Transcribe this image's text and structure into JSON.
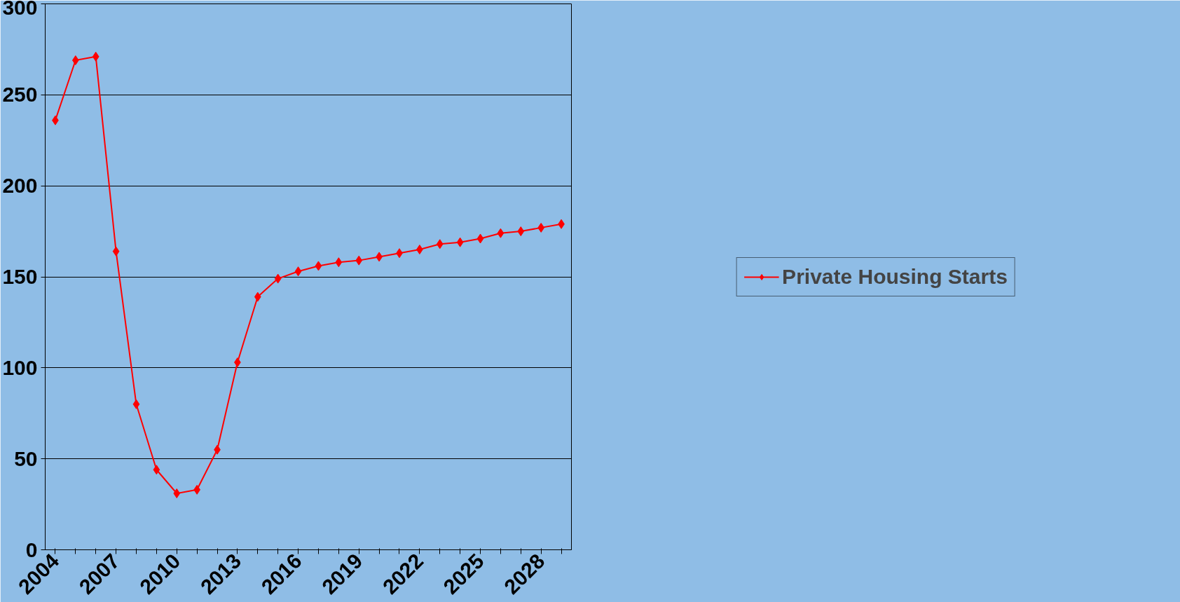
{
  "chart_data": {
    "type": "line",
    "categories": [
      "2004",
      null,
      null,
      "2007",
      null,
      null,
      "2010",
      null,
      null,
      "2013",
      null,
      null,
      "2016",
      null,
      null,
      "2019",
      null,
      null,
      "2022",
      null,
      null,
      "2025",
      null,
      null,
      "2028",
      null
    ],
    "series": [
      {
        "name": "Private Housing Starts",
        "color": "#ff0000",
        "values": [
          236,
          269,
          271,
          164,
          80,
          44,
          31,
          33,
          55,
          103,
          139,
          149,
          153,
          156,
          158,
          159,
          161,
          163,
          165,
          168,
          169,
          171,
          174,
          175,
          177,
          179
        ]
      }
    ],
    "ylim": [
      0,
      300
    ],
    "yticks": [
      0,
      50,
      100,
      150,
      200,
      250,
      300
    ],
    "grid": "y",
    "legend": "right",
    "marker": "diamond",
    "line_style": "solid"
  }
}
